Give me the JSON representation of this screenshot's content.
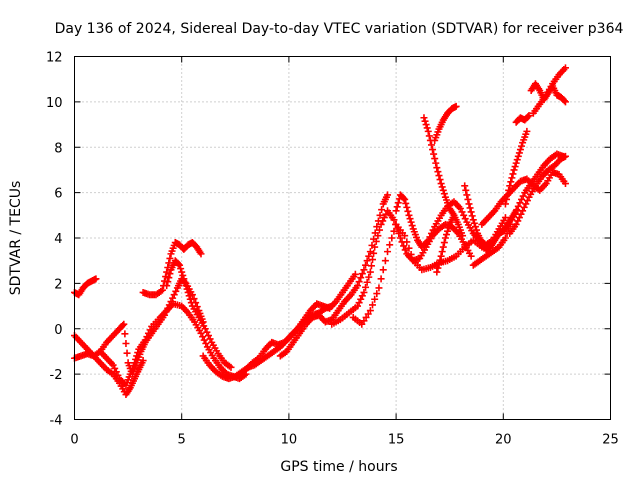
{
  "chart_data": {
    "type": "scatter",
    "title": "Day 136 of 2024, Sidereal Day-to-day VTEC variation (SDTVAR) for receiver p364",
    "xlabel": "GPS time / hours",
    "ylabel": "SDTVAR / TECUs",
    "xlim": [
      0,
      25
    ],
    "ylim": [
      -4,
      12
    ],
    "xticks": [
      0,
      5,
      10,
      15,
      20,
      25
    ],
    "yticks": [
      -4,
      -2,
      0,
      2,
      4,
      6,
      8,
      10,
      12
    ],
    "grid": true,
    "marker": "plus",
    "color": "#ff0000",
    "series": [
      {
        "x": [
          0.0,
          0.2,
          0.4,
          0.6,
          0.8,
          1.0
        ],
        "y": [
          1.6,
          1.5,
          1.8,
          2.0,
          2.1,
          2.2
        ]
      },
      {
        "x": [
          0.0,
          0.3,
          0.6,
          0.9,
          1.2,
          1.5,
          1.8,
          2.1,
          2.4,
          2.6,
          2.8,
          3.0,
          3.3,
          3.6,
          4.0,
          4.3,
          4.6,
          5.0,
          5.3,
          5.6,
          5.9,
          6.2,
          6.5,
          6.8,
          7.1,
          7.4,
          7.7,
          8.0
        ],
        "y": [
          -1.3,
          -1.2,
          -1.1,
          -1.2,
          -1.0,
          -1.3,
          -1.6,
          -2.2,
          -2.5,
          -2.0,
          -1.5,
          -0.9,
          -0.5,
          0.1,
          0.5,
          0.8,
          1.1,
          1.0,
          0.7,
          0.3,
          -0.2,
          -0.8,
          -1.3,
          -1.7,
          -2.0,
          -2.1,
          -2.2,
          -2.0
        ]
      },
      {
        "x": [
          0.0,
          0.3,
          0.6,
          0.9,
          1.2,
          1.5,
          1.8,
          2.1,
          2.4,
          2.6,
          2.8,
          3.0,
          3.2
        ],
        "y": [
          -0.3,
          -0.6,
          -0.9,
          -1.2,
          -1.5,
          -1.8,
          -2.0,
          -2.4,
          -2.9,
          -2.6,
          -2.2,
          -1.8,
          -1.4
        ]
      },
      {
        "x": [
          1.2,
          1.5,
          1.8,
          2.1,
          2.3,
          2.5,
          2.7,
          2.9,
          3.1,
          3.3,
          3.6,
          3.9,
          4.2,
          4.5,
          4.8,
          5.0,
          5.2,
          5.5,
          5.8,
          6.0
        ],
        "y": [
          -1.0,
          -0.6,
          -0.3,
          0.0,
          0.2,
          -1.5,
          -2.0,
          -1.5,
          -1.0,
          -0.6,
          -0.2,
          0.2,
          0.6,
          1.2,
          1.8,
          2.2,
          2.0,
          1.5,
          0.8,
          0.3
        ]
      },
      {
        "x": [
          3.2,
          3.5,
          3.8,
          4.1,
          4.3,
          4.5,
          4.7,
          4.9,
          5.1,
          5.3,
          5.5,
          5.7,
          5.9
        ],
        "y": [
          1.6,
          1.5,
          1.5,
          1.7,
          2.5,
          3.3,
          3.8,
          3.7,
          3.5,
          3.7,
          3.8,
          3.6,
          3.3
        ]
      },
      {
        "x": [
          4.3,
          4.5,
          4.7,
          4.9,
          5.1,
          5.3,
          5.5,
          5.8,
          6.1,
          6.4,
          6.7,
          7.0,
          7.3
        ],
        "y": [
          1.9,
          2.6,
          3.0,
          2.8,
          2.2,
          1.6,
          1.0,
          0.5,
          0.0,
          -0.6,
          -1.1,
          -1.5,
          -1.7
        ]
      },
      {
        "x": [
          6.0,
          6.3,
          6.6,
          6.9,
          7.2,
          7.5,
          7.8,
          8.1,
          8.4,
          8.7,
          9.0,
          9.3,
          9.6,
          9.9,
          10.2,
          10.5,
          10.8,
          11.1,
          11.4,
          11.7,
          12.0
        ],
        "y": [
          -1.2,
          -1.6,
          -1.9,
          -2.1,
          -2.2,
          -2.1,
          -1.9,
          -1.7,
          -1.6,
          -1.4,
          -1.2,
          -1.0,
          -0.8,
          -0.5,
          -0.2,
          0.1,
          0.4,
          0.6,
          0.7,
          0.9,
          1.0
        ]
      },
      {
        "x": [
          8.0,
          8.3,
          8.6,
          8.9,
          9.2,
          9.5,
          9.8,
          10.1,
          10.4,
          10.7,
          11.0,
          11.3,
          11.6,
          11.9,
          12.2,
          12.5,
          12.8,
          13.1
        ],
        "y": [
          -1.8,
          -1.5,
          -1.3,
          -0.9,
          -0.6,
          -0.7,
          -0.6,
          -0.3,
          0.0,
          0.4,
          0.8,
          1.1,
          1.0,
          0.9,
          1.2,
          1.6,
          2.0,
          2.4
        ]
      },
      {
        "x": [
          9.6,
          9.9,
          10.2,
          10.5,
          10.8,
          11.1,
          11.4,
          11.7,
          12.0,
          12.3,
          12.6,
          12.9,
          13.2,
          13.5,
          13.8,
          14.1,
          14.4,
          14.6
        ],
        "y": [
          -1.2,
          -1.0,
          -0.6,
          -0.2,
          0.2,
          0.5,
          0.6,
          0.3,
          0.4,
          0.8,
          1.2,
          1.5,
          1.9,
          2.6,
          3.4,
          4.5,
          5.5,
          5.9
        ]
      },
      {
        "x": [
          12.0,
          12.4,
          12.8,
          13.2,
          13.5,
          13.8,
          14.0,
          14.3,
          14.6,
          14.9,
          15.2,
          15.5,
          15.8,
          16.1,
          16.4,
          16.7,
          17.0,
          17.3,
          17.6,
          17.9,
          18.2,
          18.5
        ],
        "y": [
          0.2,
          0.4,
          0.7,
          1.0,
          1.6,
          2.5,
          3.6,
          4.6,
          5.2,
          4.8,
          4.0,
          3.3,
          3.0,
          3.1,
          3.6,
          4.1,
          4.4,
          4.6,
          4.5,
          4.2,
          3.7,
          3.2
        ]
      },
      {
        "x": [
          13.0,
          13.4,
          13.8,
          14.2,
          14.6,
          15.0,
          15.4,
          15.8,
          16.2,
          16.6,
          17.0,
          17.4,
          17.8,
          18.2,
          18.6,
          19.0,
          19.4
        ],
        "y": [
          0.5,
          0.2,
          0.8,
          1.8,
          3.4,
          4.6,
          4.1,
          3.0,
          2.6,
          2.7,
          2.9,
          3.0,
          3.2,
          3.6,
          3.9,
          3.6,
          3.4
        ]
      },
      {
        "x": [
          15.0,
          15.2,
          15.4,
          15.6,
          15.8,
          16.0,
          16.2,
          16.5,
          16.8,
          17.1,
          17.4,
          17.7,
          18.0,
          18.3,
          18.6,
          18.9,
          19.2,
          19.5,
          19.8,
          20.1
        ],
        "y": [
          5.2,
          5.9,
          5.7,
          5.0,
          4.4,
          3.9,
          3.6,
          3.9,
          4.5,
          5.0,
          5.4,
          5.6,
          5.3,
          4.7,
          4.2,
          3.9,
          3.7,
          3.9,
          4.4,
          4.9
        ]
      },
      {
        "x": [
          16.3,
          16.5,
          16.7,
          16.9,
          17.1,
          17.3,
          17.5,
          17.7
        ],
        "y": [
          9.3,
          8.7,
          7.9,
          7.1,
          6.4,
          5.8,
          5.3,
          5.0
        ]
      },
      {
        "x": [
          16.8,
          17.0,
          17.2,
          17.4,
          17.6,
          17.8
        ],
        "y": [
          8.3,
          8.8,
          9.2,
          9.5,
          9.7,
          9.8
        ]
      },
      {
        "x": [
          16.9,
          17.1,
          17.3,
          17.5,
          17.7,
          17.9,
          18.1
        ],
        "y": [
          2.5,
          3.2,
          4.0,
          4.6,
          5.0,
          4.6,
          4.1
        ]
      },
      {
        "x": [
          18.2,
          18.4,
          18.6,
          18.8,
          19.0,
          19.2,
          19.4,
          19.6,
          19.8,
          20.0,
          20.2,
          20.4,
          20.6
        ],
        "y": [
          6.3,
          5.5,
          4.8,
          4.2,
          3.8,
          3.5,
          3.6,
          3.9,
          4.2,
          4.3,
          4.6,
          4.9,
          5.2
        ]
      },
      {
        "x": [
          18.6,
          18.9,
          19.2,
          19.5,
          19.8,
          20.1,
          20.4,
          20.7,
          21.0,
          21.3,
          21.6,
          21.9,
          22.2,
          22.5,
          22.8
        ],
        "y": [
          2.8,
          3.0,
          3.2,
          3.4,
          3.6,
          4.0,
          4.8,
          5.4,
          6.0,
          6.4,
          6.8,
          7.2,
          7.5,
          7.7,
          7.6
        ]
      },
      {
        "x": [
          19.0,
          19.3,
          19.6,
          19.9,
          20.2,
          20.5,
          20.8,
          21.1,
          21.4,
          21.7,
          22.0,
          22.3,
          22.6,
          22.9
        ],
        "y": [
          4.6,
          4.9,
          5.2,
          5.6,
          5.9,
          6.2,
          6.5,
          6.6,
          6.3,
          6.1,
          6.4,
          6.9,
          6.8,
          6.4
        ]
      },
      {
        "x": [
          20.1,
          20.3,
          20.5,
          20.7,
          20.9,
          21.1
        ],
        "y": [
          5.5,
          6.3,
          7.0,
          7.6,
          8.2,
          8.7
        ]
      },
      {
        "x": [
          20.6,
          20.8,
          21.0,
          21.2
        ],
        "y": [
          9.1,
          9.3,
          9.2,
          9.4
        ]
      },
      {
        "x": [
          21.3,
          21.5,
          21.7,
          21.9,
          22.1,
          22.3,
          22.5,
          22.7,
          22.9
        ],
        "y": [
          10.5,
          10.8,
          10.5,
          10.1,
          10.4,
          10.7,
          10.3,
          10.2,
          10.0
        ]
      },
      {
        "x": [
          21.4,
          21.7,
          22.0,
          22.3,
          22.6,
          22.9
        ],
        "y": [
          9.5,
          9.9,
          10.3,
          10.8,
          11.2,
          11.5
        ]
      },
      {
        "x": [
          20.3,
          20.6,
          20.9,
          21.2,
          21.5,
          21.8,
          22.1,
          22.4,
          22.7,
          22.9
        ],
        "y": [
          4.2,
          4.6,
          5.2,
          5.8,
          6.3,
          6.7,
          7.0,
          7.2,
          7.5,
          7.6
        ]
      }
    ]
  }
}
